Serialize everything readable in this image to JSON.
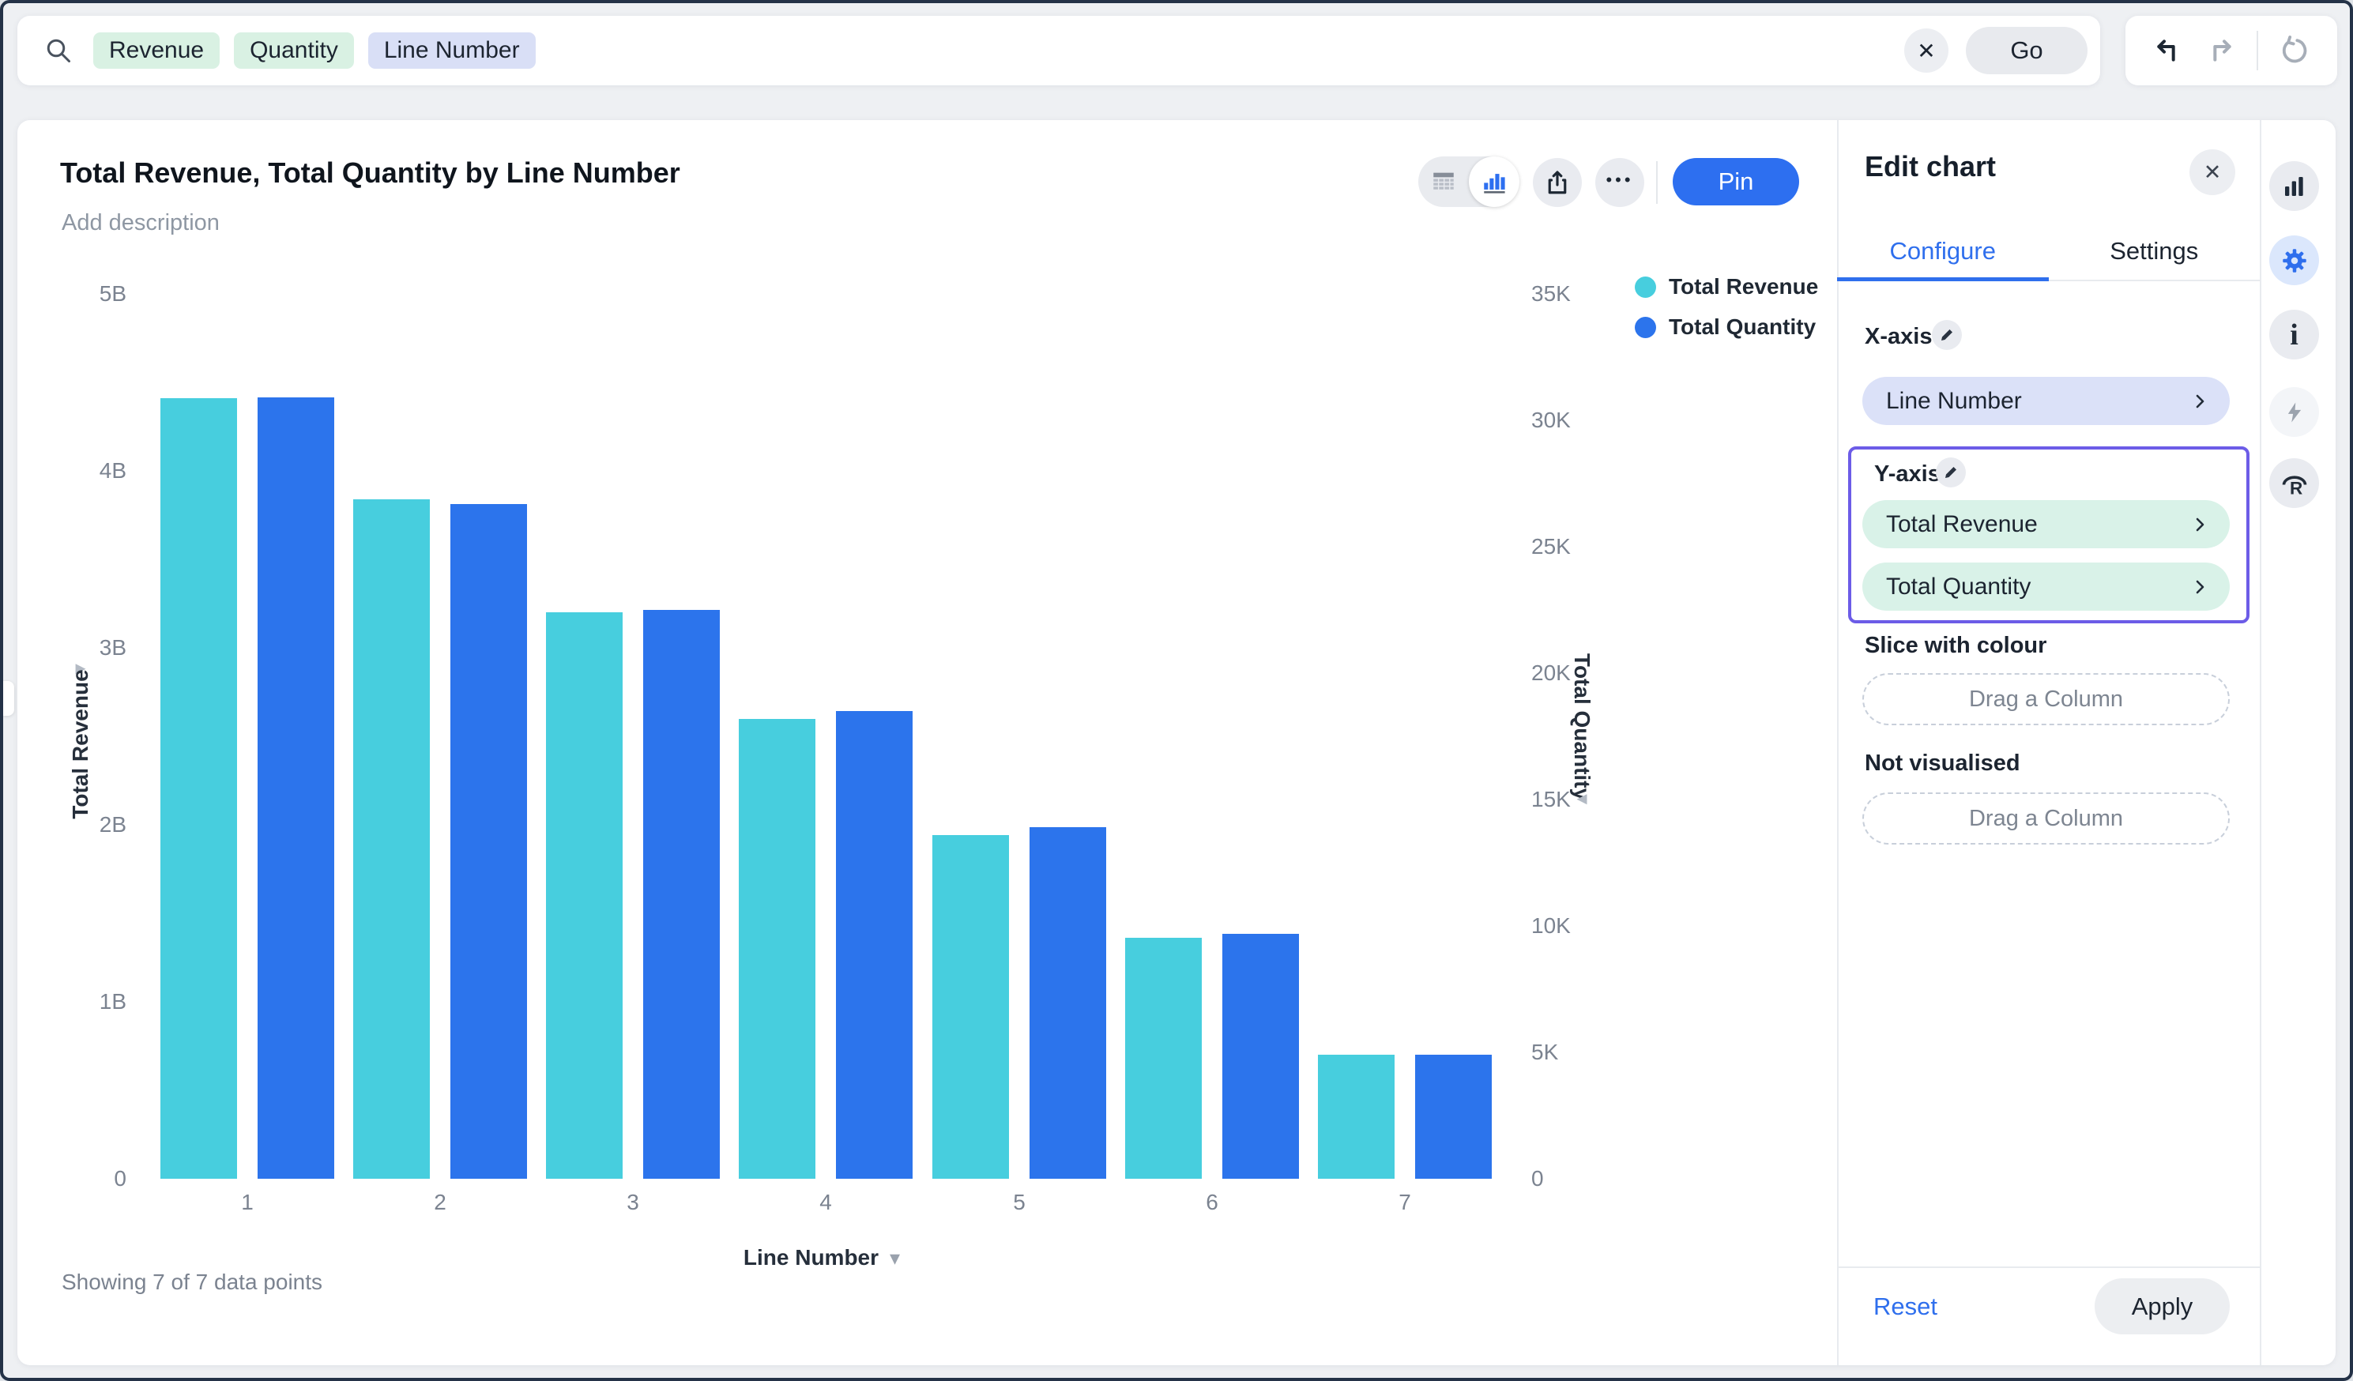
{
  "icons": {
    "close": "✕",
    "more": "•••",
    "axis_handle_right": "▸",
    "axis_handle_left": "◂",
    "dropdown_caret": "▾"
  },
  "search_bar": {
    "tokens": [
      {
        "label": "Revenue",
        "type": "measure"
      },
      {
        "label": "Quantity",
        "type": "measure"
      },
      {
        "label": "Line Number",
        "type": "attribute"
      }
    ],
    "go_label": "Go"
  },
  "toolbar": {
    "pin_label": "Pin"
  },
  "chart_header": {
    "title": "Total Revenue, Total Quantity by Line Number",
    "description_placeholder": "Add description"
  },
  "legend": [
    {
      "label": "Total Revenue",
      "color": "#47CEDE"
    },
    {
      "label": "Total Quantity",
      "color": "#2C74EC"
    }
  ],
  "chart_data": {
    "type": "bar",
    "title": "Total Revenue, Total Quantity by Line Number",
    "categories": [
      "1",
      "2",
      "3",
      "4",
      "5",
      "6",
      "7"
    ],
    "series": [
      {
        "name": "Total Revenue",
        "axis": "left",
        "unit": "billions",
        "color": "#47CEDE",
        "values": [
          4.41,
          3.84,
          3.2,
          2.6,
          1.94,
          1.36,
          0.7
        ]
      },
      {
        "name": "Total Quantity",
        "axis": "right",
        "unit": "thousands",
        "color": "#2C74EC",
        "values": [
          30.9,
          26.7,
          22.5,
          18.5,
          13.9,
          9.7,
          4.9
        ]
      }
    ],
    "left_axis": {
      "title": "Total Revenue",
      "max": 5,
      "tick_labels": [
        "5B",
        "4B",
        "3B",
        "2B",
        "1B",
        "0"
      ]
    },
    "right_axis": {
      "title": "Total Quantity",
      "max": 35,
      "tick_labels": [
        "35K",
        "30K",
        "25K",
        "20K",
        "15K",
        "10K",
        "5K",
        "0"
      ]
    },
    "xlabel": "Line Number",
    "footer": "Showing 7 of 7 data points",
    "grid": false,
    "legend_position": "top-right"
  },
  "edit_panel": {
    "title": "Edit chart",
    "tabs": [
      {
        "label": "Configure",
        "active": true
      },
      {
        "label": "Settings",
        "active": false
      }
    ],
    "x_axis_label": "X-axis",
    "x_axis_fields": [
      {
        "label": "Line Number",
        "type": "attribute"
      }
    ],
    "y_axis_label": "Y-axis",
    "y_axis_fields": [
      {
        "label": "Total Revenue",
        "type": "measure"
      },
      {
        "label": "Total Quantity",
        "type": "measure"
      }
    ],
    "slice_label": "Slice with colour",
    "slice_placeholder": "Drag a Column",
    "not_visualised_label": "Not visualised",
    "not_visualised_placeholder": "Drag a Column",
    "reset_label": "Reset",
    "apply_label": "Apply"
  },
  "colors": {
    "accent_blue": "#2d6ff0",
    "series_cyan": "#47CEDE",
    "series_blue": "#2C74EC",
    "highlight_purple": "#6c5ce7",
    "pill_green": "#d9f2e8",
    "pill_lavender": "#dbe1f8"
  }
}
